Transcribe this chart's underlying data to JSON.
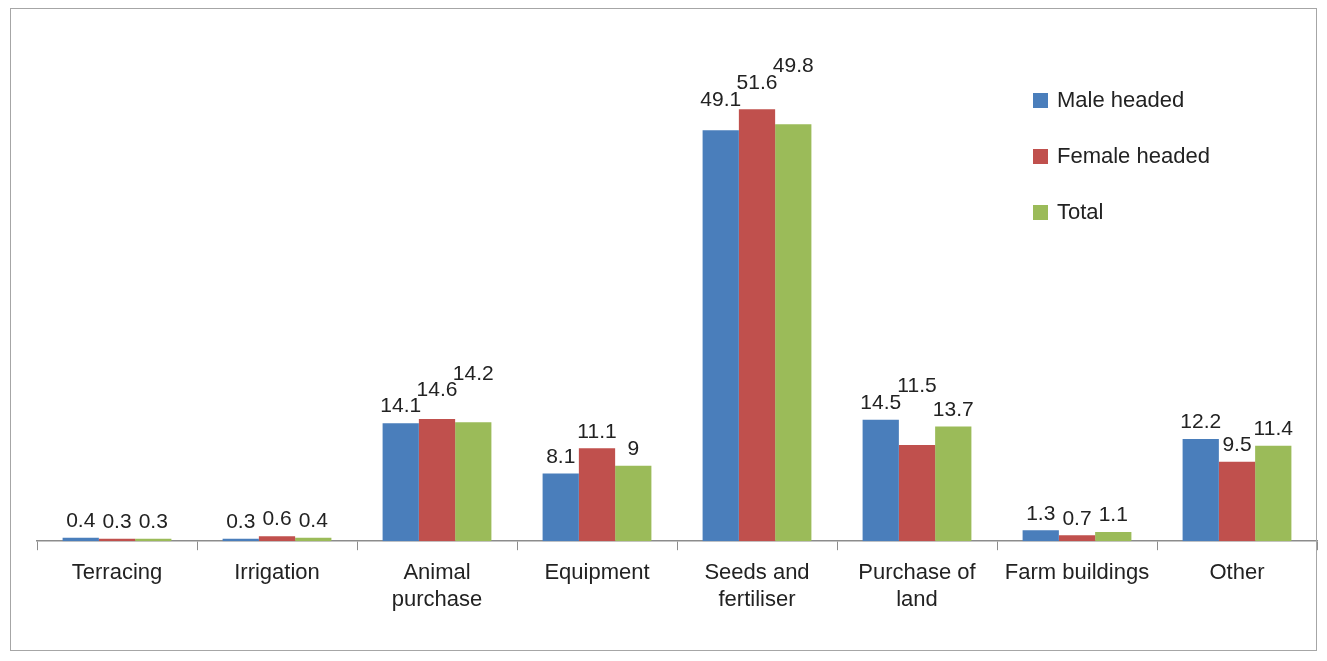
{
  "chart_data": {
    "type": "bar",
    "categories": [
      "Terracing",
      "Irrigation",
      "Animal purchase",
      "Equipment",
      "Seeds and fertiliser",
      "Purchase of land",
      "Farm buildings",
      "Other"
    ],
    "series": [
      {
        "name": "Male headed",
        "color": "#4a7ebb",
        "values": [
          0.4,
          0.3,
          14.1,
          8.1,
          49.1,
          14.5,
          1.3,
          12.2
        ]
      },
      {
        "name": "Female headed",
        "color": "#c0504d",
        "values": [
          0.3,
          0.6,
          14.6,
          11.1,
          51.6,
          11.5,
          0.7,
          9.5
        ]
      },
      {
        "name": "Total",
        "color": "#9bbb59",
        "values": [
          0.3,
          0.4,
          14.2,
          9,
          49.8,
          13.7,
          1.1,
          11.4
        ]
      }
    ],
    "data_labels": true,
    "legend": "top right",
    "grid": false
  }
}
